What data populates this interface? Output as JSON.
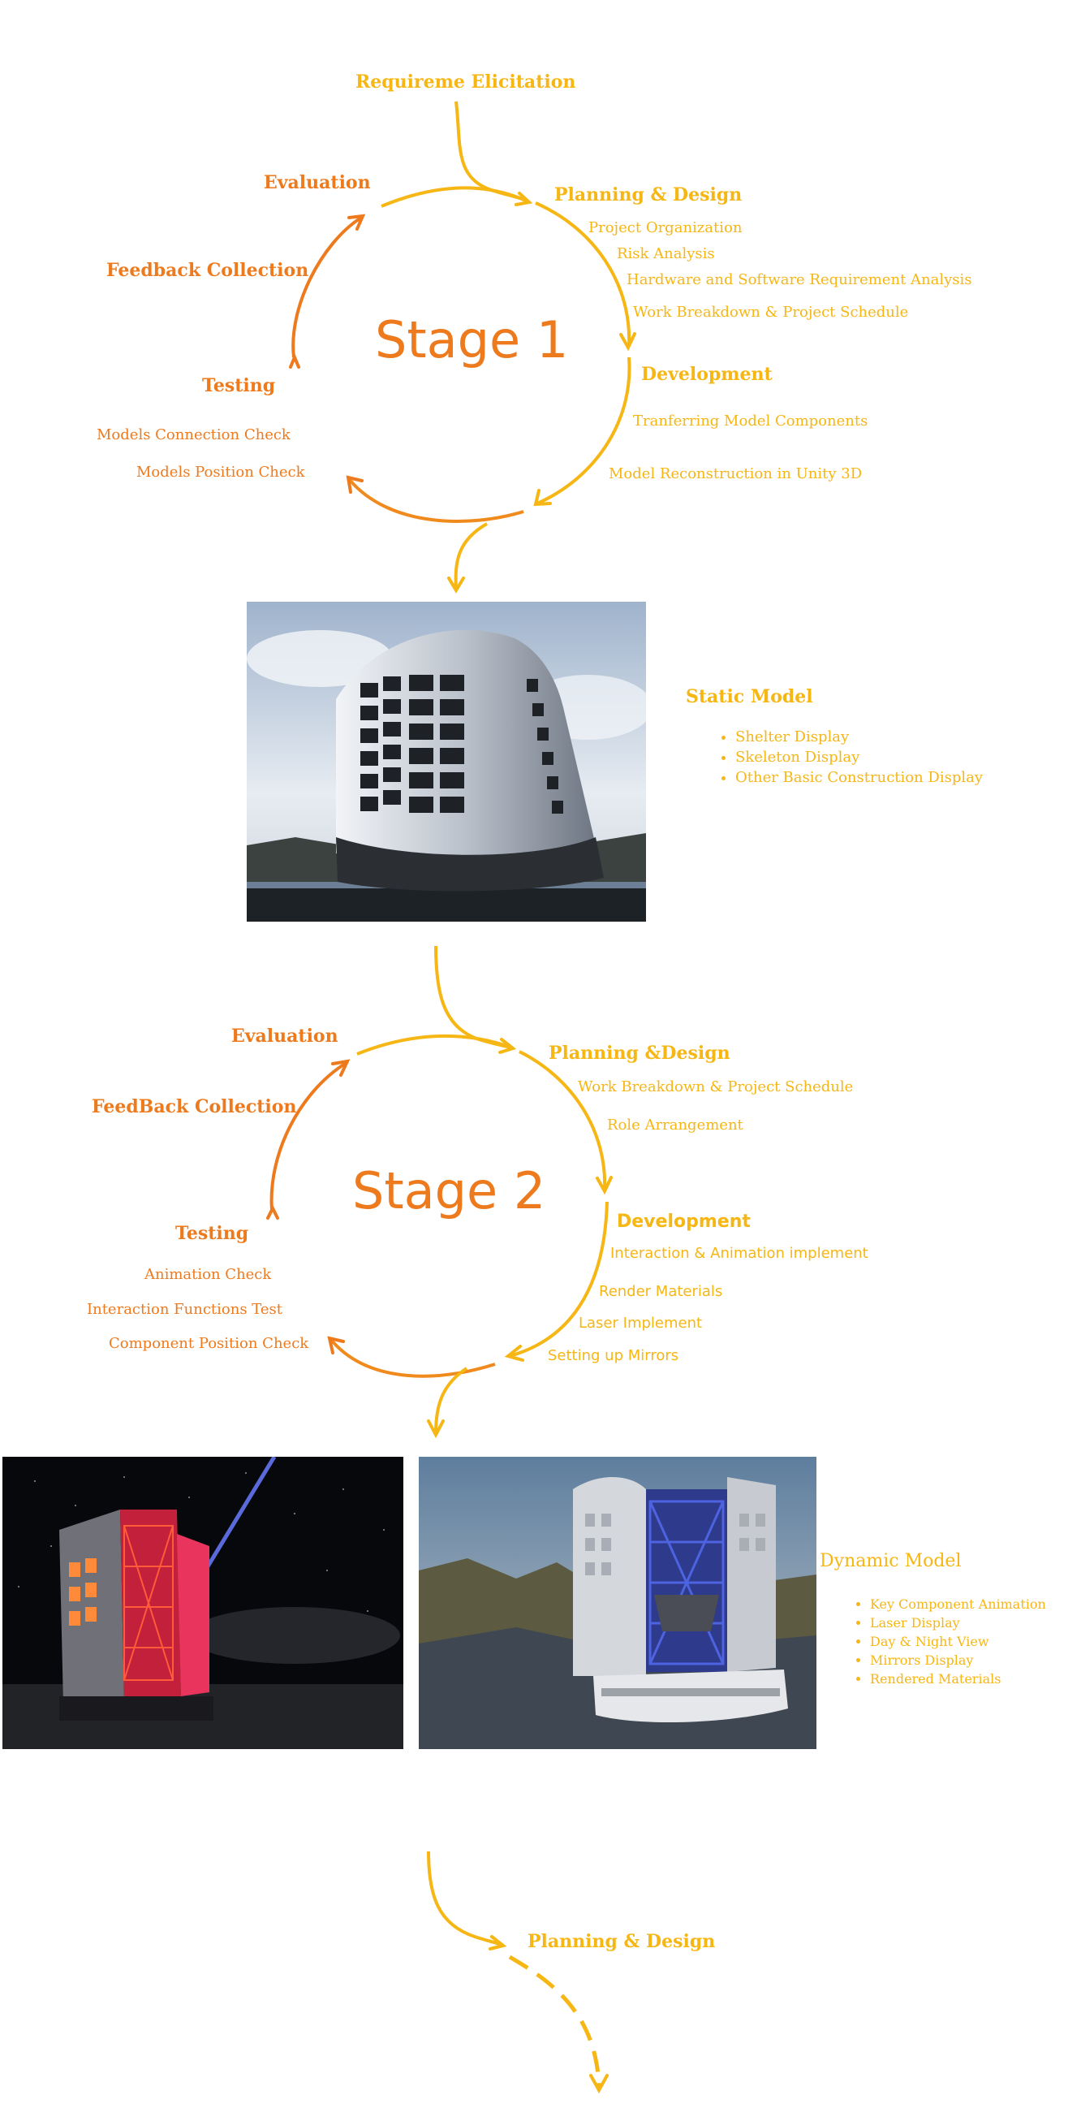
{
  "start_label": "Requireme Elicitation",
  "stage1": {
    "title": "Stage 1",
    "planning": {
      "label": "Planning & Design",
      "items": [
        "Project Organization",
        "Risk Analysis",
        "Hardware and Software Requirement Analysis",
        "Work Breakdown & Project Schedule"
      ]
    },
    "development": {
      "label": "Development",
      "items": [
        "Tranferring Model Components",
        "Model Reconstruction in Unity 3D"
      ]
    },
    "testing": {
      "label": "Testing",
      "items": [
        "Models Connection Check",
        "Models Position Check"
      ]
    },
    "feedback": "Feedback Collection",
    "evaluation": "Evaluation"
  },
  "static_model": {
    "title": "Static Model",
    "items": [
      "Shelter Display",
      "Skeleton Display",
      "Other Basic Construction Display"
    ]
  },
  "stage2": {
    "title": "Stage 2",
    "planning": {
      "label": "Planning &Design",
      "items": [
        "Work Breakdown & Project Schedule",
        "Role Arrangement"
      ]
    },
    "development": {
      "label": "Development",
      "items": [
        "Interaction & Animation implement",
        "Render Materials",
        "Laser Implement",
        "Setting up Mirrors"
      ]
    },
    "testing": {
      "label": "Testing",
      "items": [
        "Animation Check",
        "Interaction Functions Test",
        "Component Position Check"
      ]
    },
    "feedback": "FeedBack Collection",
    "evaluation": "Evaluation"
  },
  "dynamic_model": {
    "title": "Dynamic Model",
    "items": [
      "Key Component Animation",
      "Laser Display",
      "Day & Night View",
      "Mirrors Display",
      "Rendered Materials"
    ]
  },
  "next": {
    "label": "Planning & Design"
  },
  "colors": {
    "yellow": "#F6B614",
    "orange": "#EE7A1E"
  }
}
